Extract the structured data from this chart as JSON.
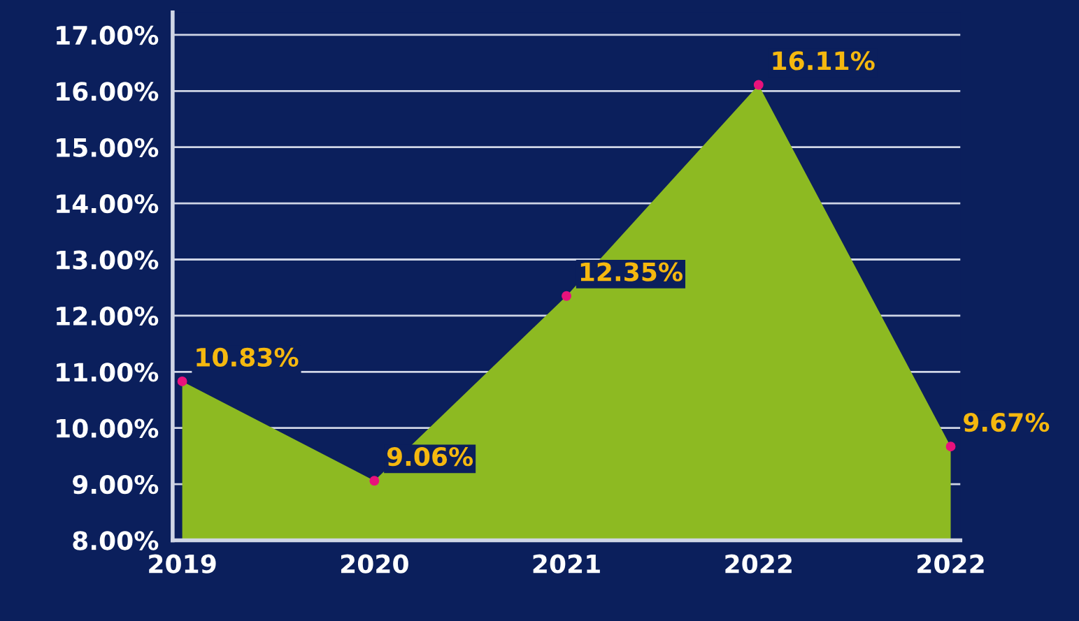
{
  "chart_data": {
    "type": "area",
    "categories": [
      "2019",
      "2020",
      "2021",
      "2022",
      "2022"
    ],
    "series": [
      {
        "color": "#8dba22",
        "values": [
          10.83,
          9.06,
          12.35,
          16.11,
          9.67
        ],
        "value_labels": [
          "10.83%",
          "9.06%",
          "12.35%",
          "16.11%",
          "9.67%"
        ]
      }
    ],
    "ylim": [
      8,
      17.4
    ],
    "yticks": [
      {
        "value": 8,
        "label": "8.00%"
      },
      {
        "value": 9,
        "label": "9.00%"
      },
      {
        "value": 10,
        "label": "10.00%"
      },
      {
        "value": 11,
        "label": "11.00%"
      },
      {
        "value": 12,
        "label": "12.00%"
      },
      {
        "value": 13,
        "label": "13.00%"
      },
      {
        "value": 14,
        "label": "14.00%"
      },
      {
        "value": 15,
        "label": "15.00%"
      },
      {
        "value": 16,
        "label": "16.00%"
      },
      {
        "value": 17,
        "label": "17.00%"
      }
    ],
    "grid": "y",
    "marker": "circle"
  }
}
